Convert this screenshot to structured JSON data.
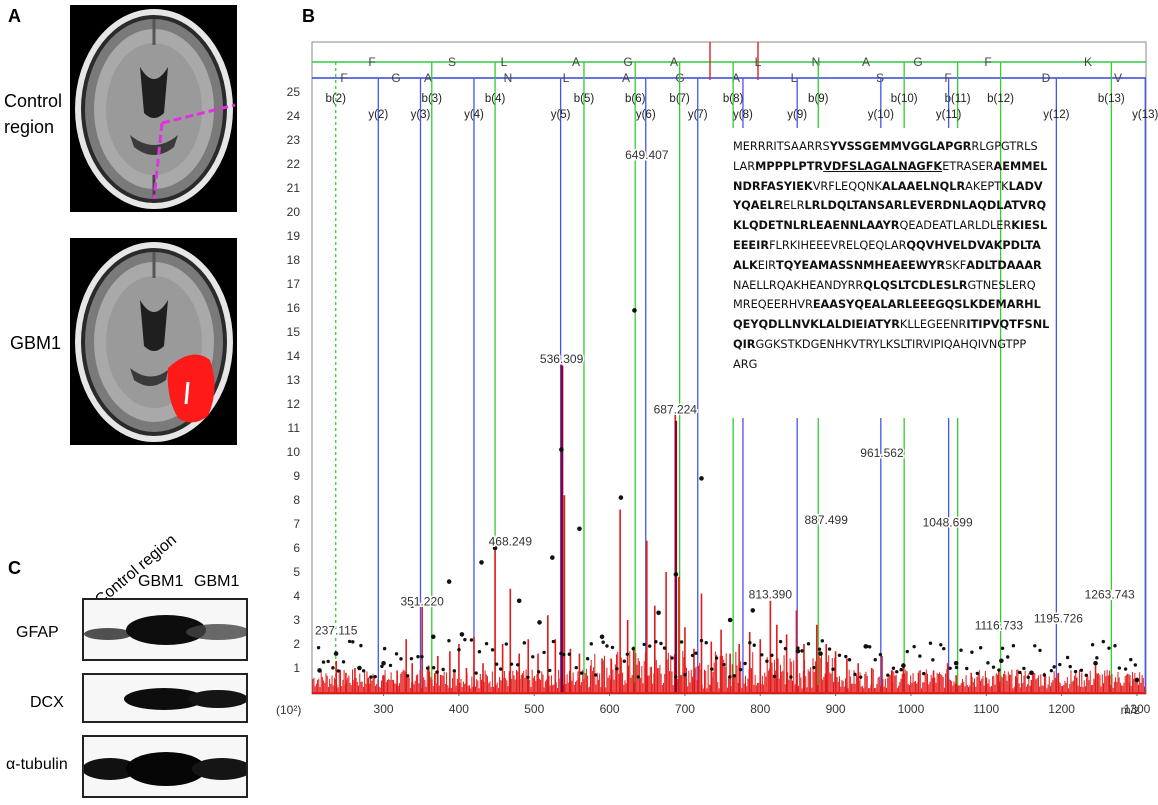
{
  "panels": {
    "A": "A",
    "B": "B",
    "C": "C"
  },
  "panel_a": {
    "label1_line1": "Control",
    "label1_line2": "region",
    "label2": "GBM1"
  },
  "panel_c": {
    "lane_header_1": "Control region",
    "lane_header_2": "GBM1",
    "lane_header_3": "GBM1",
    "rows": [
      "GFAP",
      "DCX",
      "α-tubulin"
    ]
  },
  "chart_data": {
    "type": "bar",
    "xlabel": "m/z",
    "ylabel": "(10²)",
    "xlim": [
      205,
      1312
    ],
    "ylim": [
      0,
      25
    ],
    "x_ticks": [
      300,
      400,
      500,
      600,
      700,
      800,
      900,
      1000,
      1100,
      1200,
      1300
    ],
    "y_ticks": [
      1,
      2,
      3,
      4,
      5,
      6,
      7,
      8,
      9,
      10,
      11,
      12,
      13,
      14,
      15,
      16,
      17,
      18,
      19,
      20,
      21,
      22,
      23,
      24,
      25
    ],
    "peak_labels": [
      {
        "x": 237.115,
        "y": 2.4,
        "text": "237.115"
      },
      {
        "x": 351.22,
        "y": 3.6,
        "text": "351.220"
      },
      {
        "x": 468.249,
        "y": 6.1,
        "text": "468.249"
      },
      {
        "x": 536.309,
        "y": 13.7,
        "text": "536.309"
      },
      {
        "x": 649.407,
        "y": 22.2,
        "text": "649.407"
      },
      {
        "x": 687.224,
        "y": 11.6,
        "text": "687.224"
      },
      {
        "x": 813.39,
        "y": 3.9,
        "text": "813.390"
      },
      {
        "x": 887.499,
        "y": 7.0,
        "text": "887.499"
      },
      {
        "x": 961.562,
        "y": 9.8,
        "text": "961.562"
      },
      {
        "x": 1048.699,
        "y": 6.9,
        "text": "1048.699"
      },
      {
        "x": 1116.733,
        "y": 2.6,
        "text": "1116.733"
      },
      {
        "x": 1195.726,
        "y": 2.9,
        "text": "1195.726"
      },
      {
        "x": 1263.743,
        "y": 3.9,
        "text": "1263.743"
      }
    ],
    "peaks": [
      [
        237.1,
        1.3
      ],
      [
        250,
        0.8
      ],
      [
        262,
        1.0
      ],
      [
        280,
        0.6
      ],
      [
        300,
        0.7
      ],
      [
        318,
        0.9
      ],
      [
        330,
        2.2
      ],
      [
        338,
        1.2
      ],
      [
        351.2,
        3.6
      ],
      [
        360,
        1.1
      ],
      [
        372,
        1.5
      ],
      [
        388,
        1.7
      ],
      [
        400,
        2.0
      ],
      [
        410,
        1.0
      ],
      [
        420,
        2.3
      ],
      [
        432,
        1.2
      ],
      [
        448,
        5.9
      ],
      [
        458,
        2.0
      ],
      [
        468.2,
        4.3
      ],
      [
        480,
        1.6
      ],
      [
        492,
        2.2
      ],
      [
        505,
        1.6
      ],
      [
        518,
        3.2
      ],
      [
        528,
        2.2
      ],
      [
        536.3,
        13.7
      ],
      [
        540,
        8.2
      ],
      [
        548,
        1.8
      ],
      [
        560,
        1.6
      ],
      [
        575,
        1.1
      ],
      [
        590,
        1.4
      ],
      [
        602,
        1.4
      ],
      [
        614,
        7.6
      ],
      [
        624,
        3.0
      ],
      [
        632,
        1.9
      ],
      [
        649.4,
        6.3
      ],
      [
        660,
        3.6
      ],
      [
        675,
        5.0
      ],
      [
        687.2,
        11.6
      ],
      [
        692,
        4.8
      ],
      [
        700,
        2.7
      ],
      [
        712,
        1.8
      ],
      [
        722,
        4.1
      ],
      [
        735,
        2.1
      ],
      [
        748,
        2.6
      ],
      [
        760,
        1.6
      ],
      [
        772,
        2.0
      ],
      [
        786,
        2.5
      ],
      [
        800,
        2.2
      ],
      [
        813.4,
        3.8
      ],
      [
        822,
        2.8
      ],
      [
        835,
        2.4
      ],
      [
        848,
        3.4
      ],
      [
        858,
        2.0
      ],
      [
        875,
        2.8
      ],
      [
        887.5,
        2.0
      ],
      [
        900,
        1.7
      ],
      [
        915,
        1.4
      ],
      [
        930,
        1.2
      ],
      [
        948,
        1.0
      ],
      [
        961.6,
        1.5
      ],
      [
        975,
        0.9
      ],
      [
        990,
        1.2
      ],
      [
        1010,
        0.8
      ],
      [
        1030,
        0.9
      ],
      [
        1048.7,
        1.2
      ],
      [
        1060,
        0.7
      ],
      [
        1080,
        0.8
      ],
      [
        1100,
        0.6
      ],
      [
        1116.7,
        0.9
      ],
      [
        1140,
        0.6
      ],
      [
        1160,
        0.5
      ],
      [
        1195.7,
        0.8
      ],
      [
        1220,
        0.6
      ],
      [
        1245,
        1.1
      ],
      [
        1263.7,
        0.7
      ],
      [
        1290,
        0.4
      ]
    ],
    "highlight_peaks": [
      {
        "x": 537,
        "y": 13.6,
        "color": "#8b0033"
      },
      {
        "x": 688,
        "y": 11.3,
        "color": "#8b0033"
      }
    ],
    "markers": [
      [
        215,
        0.9
      ],
      [
        237,
        1.6
      ],
      [
        268,
        1.0
      ],
      [
        300,
        1.2
      ],
      [
        338,
        3.6
      ],
      [
        366,
        2.3
      ],
      [
        387,
        4.6
      ],
      [
        404,
        2.4
      ],
      [
        430,
        5.4
      ],
      [
        448,
        6.0
      ],
      [
        480,
        3.8
      ],
      [
        507,
        2.9
      ],
      [
        524,
        5.6
      ],
      [
        536,
        10.1
      ],
      [
        560,
        6.8
      ],
      [
        590,
        2.3
      ],
      [
        615,
        8.1
      ],
      [
        633,
        15.9
      ],
      [
        665,
        3.3
      ],
      [
        688,
        4.9
      ],
      [
        722,
        8.9
      ],
      [
        760,
        3.0
      ],
      [
        790,
        3.4
      ],
      [
        850,
        1.7
      ],
      [
        880,
        1.6
      ],
      [
        940,
        1.9
      ],
      [
        990,
        1.1
      ],
      [
        1060,
        1.2
      ],
      [
        1120,
        1.3
      ],
      [
        1160,
        0.8
      ],
      [
        1245,
        1.2
      ],
      [
        1300,
        0.5
      ]
    ],
    "b_ions": [
      {
        "label": "b(2)",
        "x": 236.5,
        "dotted": true
      },
      {
        "label": "b(3)",
        "x": 364.0
      },
      {
        "label": "b(4)",
        "x": 448.0
      },
      {
        "label": "b(5)",
        "x": 566.0
      },
      {
        "label": "b(6)",
        "x": 634.0
      },
      {
        "label": "b(7)",
        "x": 693.0
      },
      {
        "label": "b(8)",
        "x": 764.0
      },
      {
        "label": "b(9)",
        "x": 877.0
      },
      {
        "label": "b(10)",
        "x": 991.0
      },
      {
        "label": "b(11)",
        "x": 1062.0
      },
      {
        "label": "b(12)",
        "x": 1119.0
      },
      {
        "label": "b(13)",
        "x": 1266.0
      }
    ],
    "y_ions": [
      {
        "label": "y(2)",
        "x": 293.0
      },
      {
        "label": "y(3)",
        "x": 349.0
      },
      {
        "label": "y(4)",
        "x": 420.0
      },
      {
        "label": "y(5)",
        "x": 535.0
      },
      {
        "label": "y(6)",
        "x": 648.0
      },
      {
        "label": "y(7)",
        "x": 717.0
      },
      {
        "label": "y(8)",
        "x": 777.0
      },
      {
        "label": "y(9)",
        "x": 849.0
      },
      {
        "label": "y(10)",
        "x": 960.0
      },
      {
        "label": "y(11)",
        "x": 1050.0
      },
      {
        "label": "y(12)",
        "x": 1193.0
      },
      {
        "label": "y(13)",
        "x": 1311.0
      }
    ],
    "seq_top": [
      "F",
      "S",
      "L",
      "A",
      "G",
      "A",
      "L",
      "N",
      "A",
      "G",
      "F",
      "K"
    ],
    "seq_bottom": [
      "F",
      "G",
      "A",
      "N",
      "L",
      "A",
      "G",
      "A",
      "L",
      "S",
      "F",
      "D",
      "V"
    ],
    "sequence": [
      [
        [
          "MERRRITSAARRS",
          ""
        ],
        [
          "YVSSGEMMVGGLAPGR",
          "b"
        ],
        [
          "RLGPGTRLS",
          ""
        ]
      ],
      [
        [
          "LAR",
          ""
        ],
        [
          "MPPPLPTR",
          "b"
        ],
        [
          "VDFSLAGALNAGFK",
          "bu"
        ],
        [
          "ETRASER",
          ""
        ],
        [
          "AEMMEL",
          "b"
        ]
      ],
      [
        [
          "NDRFASYIEK",
          "b"
        ],
        [
          "VRFLEQQNK",
          ""
        ],
        [
          "ALAAELNQLR",
          "b"
        ],
        [
          "AKEPTK",
          ""
        ],
        [
          "LADV",
          "b"
        ]
      ],
      [
        [
          "YQAELR",
          "b"
        ],
        [
          "ELR",
          ""
        ],
        [
          "LRLDQLTANSARLEVERDNLAQDLATVRQ",
          "b"
        ]
      ],
      [
        [
          "KLQDETNLRLEAENNLAAYR",
          "b"
        ],
        [
          "QEADEATLARLDLER",
          ""
        ],
        [
          "KIESL",
          "b"
        ]
      ],
      [
        [
          "EEEIR",
          "b"
        ],
        [
          "FLRKIHEEEVRELQEQLAR",
          ""
        ],
        [
          "QQVHVELDVAKPDLTA",
          "b"
        ]
      ],
      [
        [
          "ALK",
          "b"
        ],
        [
          "EIR",
          ""
        ],
        [
          "TQYEAMASSNMHEAEEWYR",
          "b"
        ],
        [
          "SKF",
          ""
        ],
        [
          "ADLTDAAAR",
          "b"
        ]
      ],
      [
        [
          "NAELLRQAKHEANDYRR",
          ""
        ],
        [
          "QLQSLTCDLESLR",
          "b"
        ],
        [
          "GTNESLERQ",
          ""
        ]
      ],
      [
        [
          "MREQEERHVR",
          ""
        ],
        [
          "EAASYQEALARLEEEGQSLKDEMARHL",
          "b"
        ]
      ],
      [
        [
          "QEYQDLLNVKLALDIEIATYR",
          "b"
        ],
        [
          "KLLEGEENR",
          ""
        ],
        [
          "ITIPVQTFSNL",
          "b"
        ]
      ],
      [
        [
          "QIR",
          "b"
        ],
        [
          "GGKSTKDGENHKVTRYLKSLTIRVIPIQAHQIVNGTPP",
          ""
        ]
      ],
      [
        [
          "ARG",
          ""
        ]
      ]
    ]
  }
}
